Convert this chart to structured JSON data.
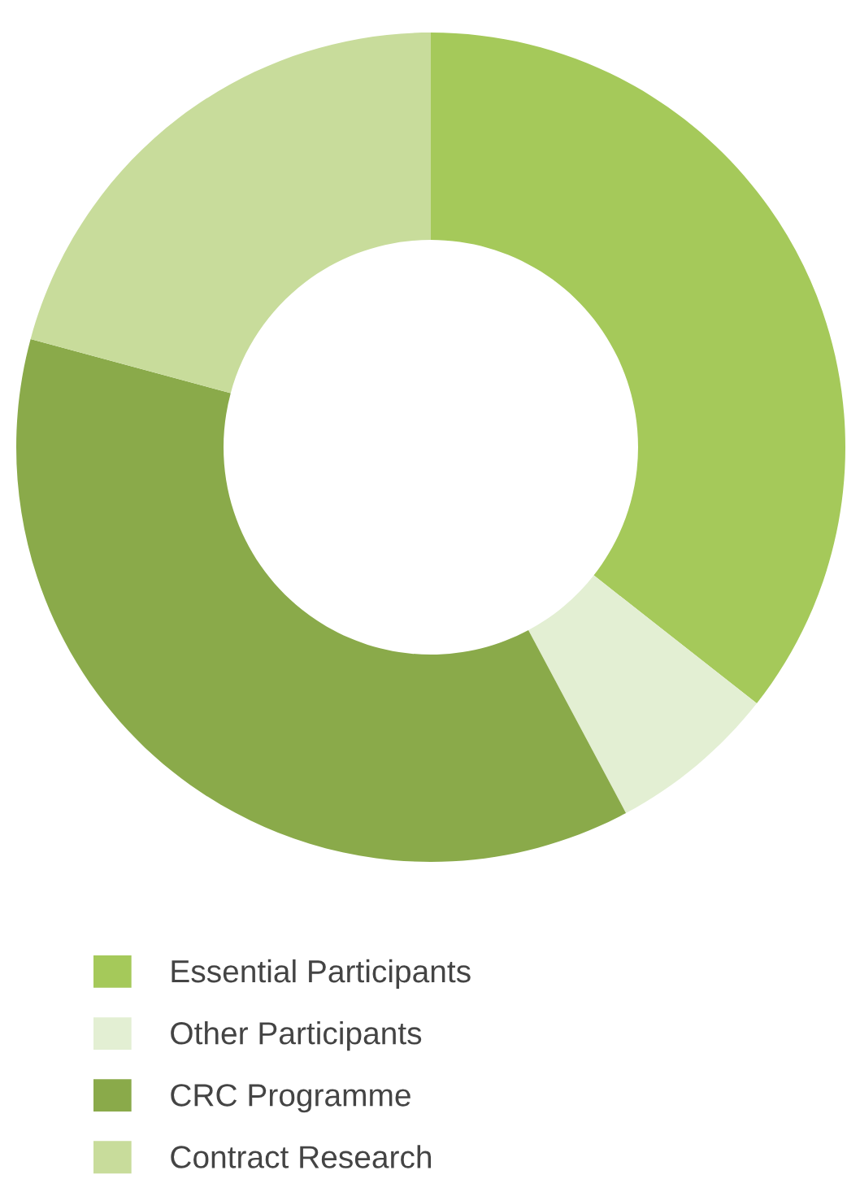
{
  "chart_data": {
    "type": "donut",
    "categories": [
      "Essential Participants",
      "Other Participants",
      "CRC Programme",
      "Contract Research"
    ],
    "values": [
      35.6,
      6.6,
      37.0,
      20.8
    ],
    "colors": [
      "#a5c95a",
      "#e3efd3",
      "#8aaa4a",
      "#c8dc9b"
    ],
    "legend": "bottom"
  }
}
